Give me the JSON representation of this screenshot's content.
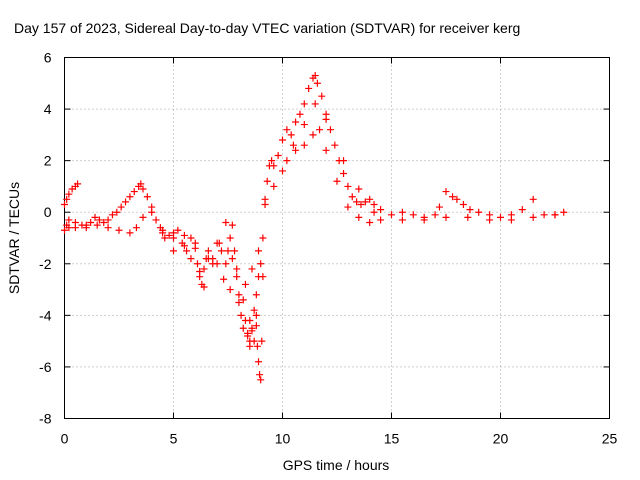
{
  "chart_data": {
    "type": "scatter",
    "title": "Day 157 of 2023, Sidereal Day-to-day VTEC variation (SDTVAR) for receiver kerg",
    "xlabel": "GPS time / hours",
    "ylabel": "SDTVAR / TECUs",
    "xlim": [
      0,
      25
    ],
    "ylim": [
      -8,
      6
    ],
    "xticks": [
      0,
      5,
      10,
      15,
      20,
      25
    ],
    "yticks": [
      -8,
      -6,
      -4,
      -2,
      0,
      2,
      4,
      6
    ],
    "xtick_labels": [
      "0",
      "5",
      "10",
      "15",
      "20",
      "25"
    ],
    "ytick_labels": [
      "-8",
      "-6",
      "-4",
      "-2",
      "0",
      "2",
      "4",
      "6"
    ],
    "grid": true,
    "marker": "+",
    "color": "#ff0000",
    "series": [
      {
        "name": "SDTVAR",
        "x": [
          0.0,
          0.1,
          0.2,
          0.35,
          0.5,
          0.6,
          0.0,
          0.1,
          0.2,
          0.5,
          0.8,
          1.0,
          1.2,
          1.4,
          1.6,
          1.8,
          2.0,
          2.2,
          2.4,
          2.6,
          2.8,
          3.0,
          3.2,
          3.4,
          3.5,
          3.6,
          3.8,
          4.0,
          4.2,
          4.4,
          4.5,
          4.6,
          4.8,
          5.0,
          5.2,
          5.4,
          5.6,
          5.8,
          6.0,
          6.1,
          6.2,
          6.3,
          6.4,
          6.5,
          6.6,
          6.8,
          7.0,
          7.2,
          7.4,
          7.5,
          7.6,
          7.7,
          7.8,
          7.9,
          8.0,
          8.1,
          8.2,
          8.3,
          8.4,
          8.5,
          8.6,
          8.7,
          8.8,
          8.9,
          9.0,
          9.1,
          9.2,
          9.3,
          9.4,
          9.5,
          9.6,
          9.8,
          10.0,
          10.2,
          10.4,
          10.6,
          10.8,
          11.0,
          11.2,
          11.4,
          11.5,
          11.6,
          11.8,
          12.0,
          12.2,
          12.4,
          12.6,
          12.8,
          13.0,
          13.2,
          13.4,
          13.6,
          13.8,
          14.0,
          14.2,
          14.5,
          15.0,
          15.5,
          16.0,
          16.5,
          17.0,
          17.2,
          17.5,
          17.8,
          18.0,
          18.3,
          18.6,
          19.0,
          19.5,
          20.0,
          20.5,
          21.0,
          21.5,
          22.0,
          22.5,
          22.9,
          0.2,
          0.5,
          1.0,
          1.5,
          2.0,
          2.5,
          3.0,
          3.3,
          3.6,
          4.0,
          4.5,
          5.0,
          5.5,
          5.8,
          6.2,
          6.6,
          7.0,
          7.3,
          7.6,
          7.9,
          8.2,
          8.5,
          8.8,
          9.1,
          10.2,
          10.6,
          11.0,
          11.4,
          11.7,
          12.0,
          12.5,
          13.0,
          13.5,
          14.0,
          14.5,
          15.5,
          16.5,
          17.5,
          18.5,
          19.5,
          20.5,
          21.5,
          22.5,
          5.0,
          5.5,
          6.0,
          6.4,
          6.8,
          7.1,
          7.4,
          7.7,
          8.0,
          8.3,
          8.6,
          8.9,
          9.2,
          9.6,
          10.0,
          10.5,
          11.0,
          11.5,
          12.0,
          12.8,
          13.5,
          14.2,
          8.85,
          8.9,
          8.95,
          9.0,
          9.05,
          8.4,
          8.5,
          8.6,
          8.7,
          8.8
        ],
        "y": [
          0.3,
          0.5,
          0.7,
          0.9,
          1.0,
          1.1,
          -0.7,
          -0.5,
          -0.3,
          -0.4,
          -0.5,
          -0.5,
          -0.4,
          -0.2,
          -0.3,
          -0.4,
          -0.3,
          -0.1,
          0.0,
          0.2,
          0.4,
          0.6,
          0.8,
          1.0,
          1.1,
          0.9,
          0.6,
          0.2,
          -0.3,
          -0.6,
          -0.8,
          -1.0,
          -0.9,
          -0.8,
          -0.7,
          -1.2,
          -1.5,
          -1.0,
          -1.4,
          -2.0,
          -2.5,
          -2.8,
          -2.2,
          -1.8,
          -1.5,
          -1.8,
          -1.2,
          -1.5,
          -2.0,
          -1.5,
          -1.0,
          -0.5,
          -1.5,
          -2.5,
          -3.5,
          -4.0,
          -4.5,
          -4.2,
          -4.8,
          -5.0,
          -4.5,
          -3.8,
          -3.2,
          -2.5,
          -2.0,
          -1.0,
          0.5,
          1.2,
          1.8,
          2.0,
          1.8,
          2.2,
          2.8,
          3.2,
          3.0,
          3.5,
          3.8,
          4.2,
          4.8,
          5.2,
          5.3,
          5.0,
          4.5,
          3.8,
          3.2,
          2.6,
          2.0,
          1.5,
          1.0,
          0.6,
          0.4,
          0.3,
          0.4,
          0.5,
          0.3,
          0.1,
          -0.1,
          0.0,
          -0.1,
          -0.2,
          -0.1,
          0.2,
          0.8,
          0.6,
          0.5,
          0.3,
          0.1,
          0.0,
          -0.1,
          -0.2,
          -0.1,
          0.1,
          0.5,
          -0.1,
          -0.1,
          0.0,
          -0.6,
          -0.6,
          -0.6,
          -0.5,
          -0.6,
          -0.7,
          -0.8,
          -0.6,
          -0.2,
          0.0,
          -0.7,
          -1.0,
          -1.3,
          -1.8,
          -2.3,
          -1.8,
          -2.0,
          -2.6,
          -3.0,
          -2.2,
          -3.4,
          -4.2,
          -4.0,
          -2.5,
          2.0,
          2.4,
          2.6,
          3.0,
          3.2,
          2.4,
          1.2,
          0.2,
          -0.2,
          -0.4,
          -0.3,
          -0.3,
          -0.3,
          -0.2,
          -0.2,
          -0.3,
          -0.3,
          -0.2,
          -0.1,
          -1.5,
          -0.9,
          -1.2,
          -2.9,
          -2.0,
          -1.2,
          -0.4,
          -1.8,
          -3.2,
          -2.8,
          -2.2,
          -1.5,
          0.3,
          1.0,
          1.6,
          2.6,
          3.4,
          4.2,
          3.6,
          2.0,
          0.9,
          0.0,
          -5.2,
          -5.8,
          -6.3,
          -6.5,
          -5.0,
          -4.7,
          -5.2,
          -4.6,
          -5.0,
          -4.4
        ]
      }
    ]
  }
}
